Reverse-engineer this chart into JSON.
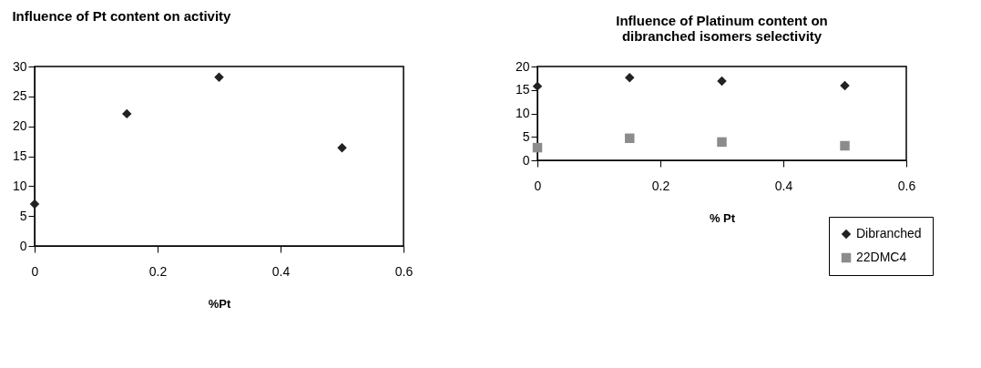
{
  "chart_data": [
    {
      "type": "scatter",
      "title": "Influence of Pt content on activity",
      "xlabel": "%Pt",
      "x": [
        0,
        0.15,
        0.3,
        0.5
      ],
      "series": [
        {
          "color": "#222222",
          "marker": "diamond",
          "values": [
            7,
            22.1,
            28.2,
            16.4
          ]
        }
      ],
      "xlim": [
        0,
        0.6
      ],
      "xticks": [
        0,
        0.2,
        0.4,
        0.6
      ],
      "ylim": [
        0,
        30
      ],
      "yticks": [
        0,
        5,
        10,
        15,
        20,
        25,
        30
      ],
      "grid": false,
      "legend": false
    },
    {
      "type": "scatter",
      "title": "Influence of Platinum content on dibranched isomers selectivity",
      "xlabel": "% Pt",
      "x": [
        0,
        0.15,
        0.3,
        0.5
      ],
      "series": [
        {
          "name": "Dibranched",
          "color": "#222222",
          "marker": "diamond",
          "values": [
            15.8,
            17.6,
            16.9,
            15.9
          ]
        },
        {
          "name": "22DMC4",
          "color": "#8c8c8c",
          "marker": "square",
          "values": [
            2.7,
            4.7,
            3.9,
            3.1
          ]
        }
      ],
      "xlim": [
        0,
        0.6
      ],
      "xticks": [
        0,
        0.2,
        0.4,
        0.6
      ],
      "ylim": [
        0,
        20
      ],
      "yticks": [
        0,
        5,
        10,
        15,
        20
      ],
      "grid": false,
      "legend": "bottom right"
    }
  ]
}
